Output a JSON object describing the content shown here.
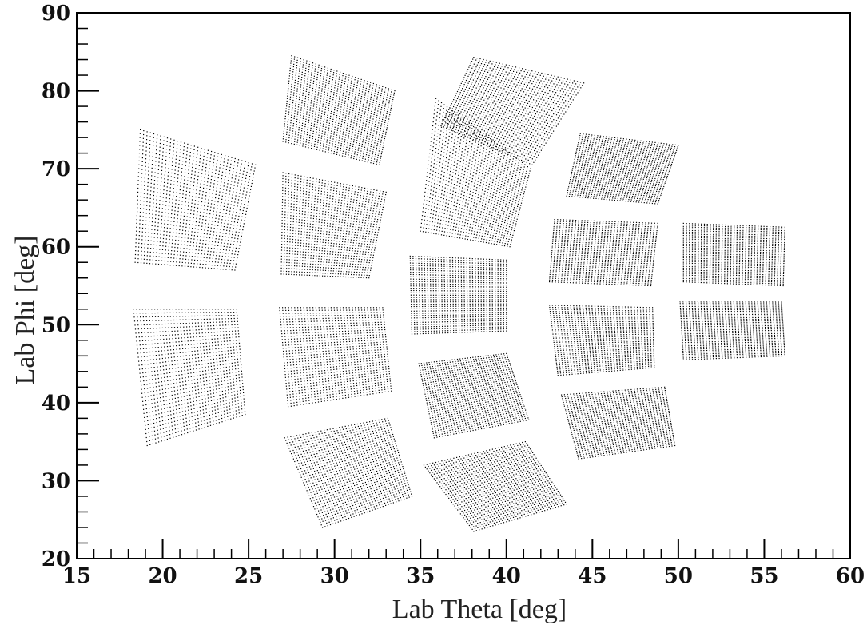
{
  "chart_data": {
    "type": "scatter",
    "title": "",
    "xlabel": "Lab Theta [deg]",
    "ylabel": "Lab Phi [deg]",
    "xlim": [
      15,
      60
    ],
    "ylim": [
      20,
      90
    ],
    "x_ticks": [
      15,
      20,
      25,
      30,
      35,
      40,
      45,
      50,
      55,
      60
    ],
    "y_ticks": [
      20,
      30,
      40,
      50,
      60,
      70,
      80,
      90
    ],
    "x_minor_step": 1,
    "y_minor_step": 2,
    "grid": false,
    "legend": "none",
    "marker_color": "#000000",
    "series": [
      {
        "corners": [
          [
            18.7,
            75.0
          ],
          [
            25.4,
            70.5
          ],
          [
            24.2,
            57.0
          ],
          [
            18.4,
            58.0
          ]
        ]
      },
      {
        "corners": [
          [
            18.3,
            52.0
          ],
          [
            24.3,
            52.0
          ],
          [
            24.8,
            38.5
          ],
          [
            19.1,
            34.5
          ]
        ]
      },
      {
        "corners": [
          [
            27.5,
            84.5
          ],
          [
            33.5,
            80.0
          ],
          [
            32.6,
            70.5
          ],
          [
            27.0,
            73.5
          ]
        ]
      },
      {
        "corners": [
          [
            27.0,
            69.5
          ],
          [
            33.0,
            67.0
          ],
          [
            32.0,
            56.0
          ],
          [
            26.9,
            56.5
          ]
        ]
      },
      {
        "corners": [
          [
            26.8,
            52.2
          ],
          [
            32.8,
            52.2
          ],
          [
            33.3,
            41.5
          ],
          [
            27.3,
            39.5
          ]
        ]
      },
      {
        "corners": [
          [
            27.1,
            35.5
          ],
          [
            33.1,
            38.0
          ],
          [
            34.5,
            28.0
          ],
          [
            29.3,
            24.0
          ]
        ]
      },
      {
        "corners": [
          [
            38.1,
            84.3
          ],
          [
            44.5,
            81.0
          ],
          [
            41.5,
            70.5
          ],
          [
            36.2,
            75.5
          ]
        ]
      },
      {
        "corners": [
          [
            35.9,
            79.0
          ],
          [
            41.4,
            70.0
          ],
          [
            40.2,
            60.0
          ],
          [
            35.0,
            62.0
          ]
        ]
      },
      {
        "corners": [
          [
            34.4,
            58.8
          ],
          [
            40.0,
            58.3
          ],
          [
            40.0,
            49.2
          ],
          [
            34.5,
            48.8
          ]
        ]
      },
      {
        "corners": [
          [
            34.9,
            45.0
          ],
          [
            40.0,
            46.3
          ],
          [
            41.3,
            37.8
          ],
          [
            35.8,
            35.5
          ]
        ]
      },
      {
        "corners": [
          [
            35.2,
            32.0
          ],
          [
            41.1,
            35.0
          ],
          [
            43.5,
            27.0
          ],
          [
            38.1,
            23.5
          ]
        ]
      },
      {
        "corners": [
          [
            44.3,
            74.5
          ],
          [
            50.0,
            73.0
          ],
          [
            48.8,
            65.5
          ],
          [
            43.5,
            66.5
          ]
        ]
      },
      {
        "corners": [
          [
            42.8,
            63.5
          ],
          [
            48.8,
            63.0
          ],
          [
            48.4,
            55.0
          ],
          [
            42.5,
            55.5
          ]
        ]
      },
      {
        "corners": [
          [
            42.5,
            52.5
          ],
          [
            48.5,
            52.2
          ],
          [
            48.6,
            44.5
          ],
          [
            43.0,
            43.5
          ]
        ]
      },
      {
        "corners": [
          [
            43.2,
            41.0
          ],
          [
            49.2,
            42.0
          ],
          [
            49.8,
            34.5
          ],
          [
            44.2,
            32.8
          ]
        ]
      },
      {
        "corners": [
          [
            50.3,
            63.0
          ],
          [
            56.2,
            62.5
          ],
          [
            56.1,
            55.0
          ],
          [
            50.3,
            55.5
          ]
        ]
      },
      {
        "corners": [
          [
            50.1,
            53.0
          ],
          [
            56.0,
            53.0
          ],
          [
            56.2,
            46.0
          ],
          [
            50.3,
            45.5
          ]
        ]
      }
    ]
  }
}
